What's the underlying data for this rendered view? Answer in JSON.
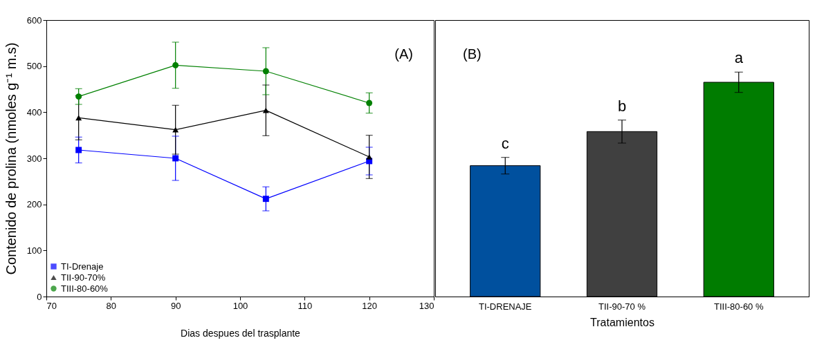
{
  "chart_data": [
    {
      "type": "line",
      "xlabel": "Dias despues del trasplante",
      "ylabel": "Contenido de prolina (nmoles g⁻¹ m.s)",
      "x": [
        75,
        90,
        104,
        120
      ],
      "xlim": [
        70,
        130
      ],
      "xticks": [
        70,
        80,
        90,
        100,
        110,
        120,
        130
      ],
      "ylim": [
        0,
        600
      ],
      "yticks": [
        0,
        100,
        200,
        300,
        400,
        500,
        600
      ],
      "grid": false,
      "legend": "bottom left",
      "line_style": "solid",
      "series": [
        {
          "name": "TI-Drenaje",
          "color": "#0000ff",
          "marker": "square",
          "values": [
            318,
            300,
            212,
            294
          ],
          "errors": [
            28,
            48,
            26,
            30
          ]
        },
        {
          "name": "TII-90-70%",
          "color": "#000000",
          "marker": "triangle",
          "values": [
            388,
            362,
            404,
            303
          ],
          "errors": [
            48,
            53,
            55,
            47
          ]
        },
        {
          "name": "TIII-80-60%",
          "color": "#008000",
          "marker": "circle",
          "values": [
            434,
            502,
            489,
            420
          ],
          "errors": [
            17,
            50,
            51,
            22
          ]
        }
      ],
      "annotations": [
        "(A)"
      ]
    },
    {
      "type": "bar",
      "xlabel": "Tratamientos",
      "categories": [
        "TI-DRENAJE",
        "TII-90-70 %",
        "TIII-80-60 %"
      ],
      "values": [
        284,
        358,
        465
      ],
      "colors": [
        "#00509e",
        "#404040",
        "#007c00"
      ],
      "errors": [
        18,
        25,
        22
      ],
      "ylim": [
        0,
        600
      ],
      "tick_labels": "x",
      "grid": false,
      "annotations": [
        "(B)",
        "c",
        "b",
        "a"
      ]
    }
  ]
}
